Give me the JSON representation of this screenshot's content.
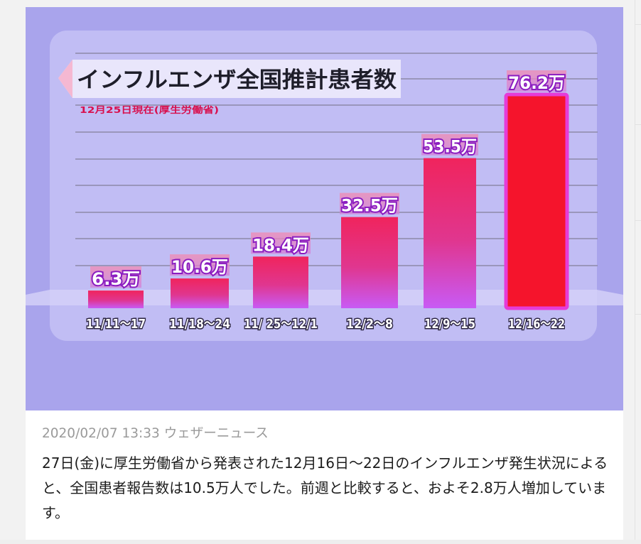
{
  "post": {
    "timestamp": "2020/02/07 13:33",
    "source": "ウェザーニュース",
    "body": "27日(金)に厚生労働省から発表された12月16日～22日のインフルエンザ発生状況によると、全国患者報告数は10.5万人でした。前週と比較すると、およそ2.8万人増加しています。"
  },
  "chart_data": {
    "type": "bar",
    "title": "インフルエンザ全国推計患者数",
    "subtitle": "12月25日現在(厚生労働省)",
    "unit": "万",
    "categories": [
      "11/11～17",
      "11/18～24",
      "11/ 25～12/1",
      "12/2～8",
      "12/9～15",
      "12/16～22"
    ],
    "values": [
      6.3,
      10.6,
      18.4,
      32.5,
      53.5,
      76.2
    ],
    "data_labels": [
      "6.3万",
      "10.6万",
      "18.4万",
      "32.5万",
      "53.5万",
      "76.2万"
    ],
    "highlight_index": 5,
    "xlabel": "",
    "ylabel": "",
    "ylim": [
      0,
      80
    ],
    "grid": true,
    "legend": "none"
  },
  "colors": {
    "background": "#a9a4ec",
    "panel": "#c1bdf4",
    "bar_top": "#f0245d",
    "bar_bottom": "#c85af5",
    "highlight_fill": "#f5142c",
    "highlight_border": "#e63bd8",
    "label_text": "#ffffff",
    "label_stroke": "#8a1cc0",
    "title_text": "#1e1e2a",
    "subtitle_text": "#d8104e"
  }
}
